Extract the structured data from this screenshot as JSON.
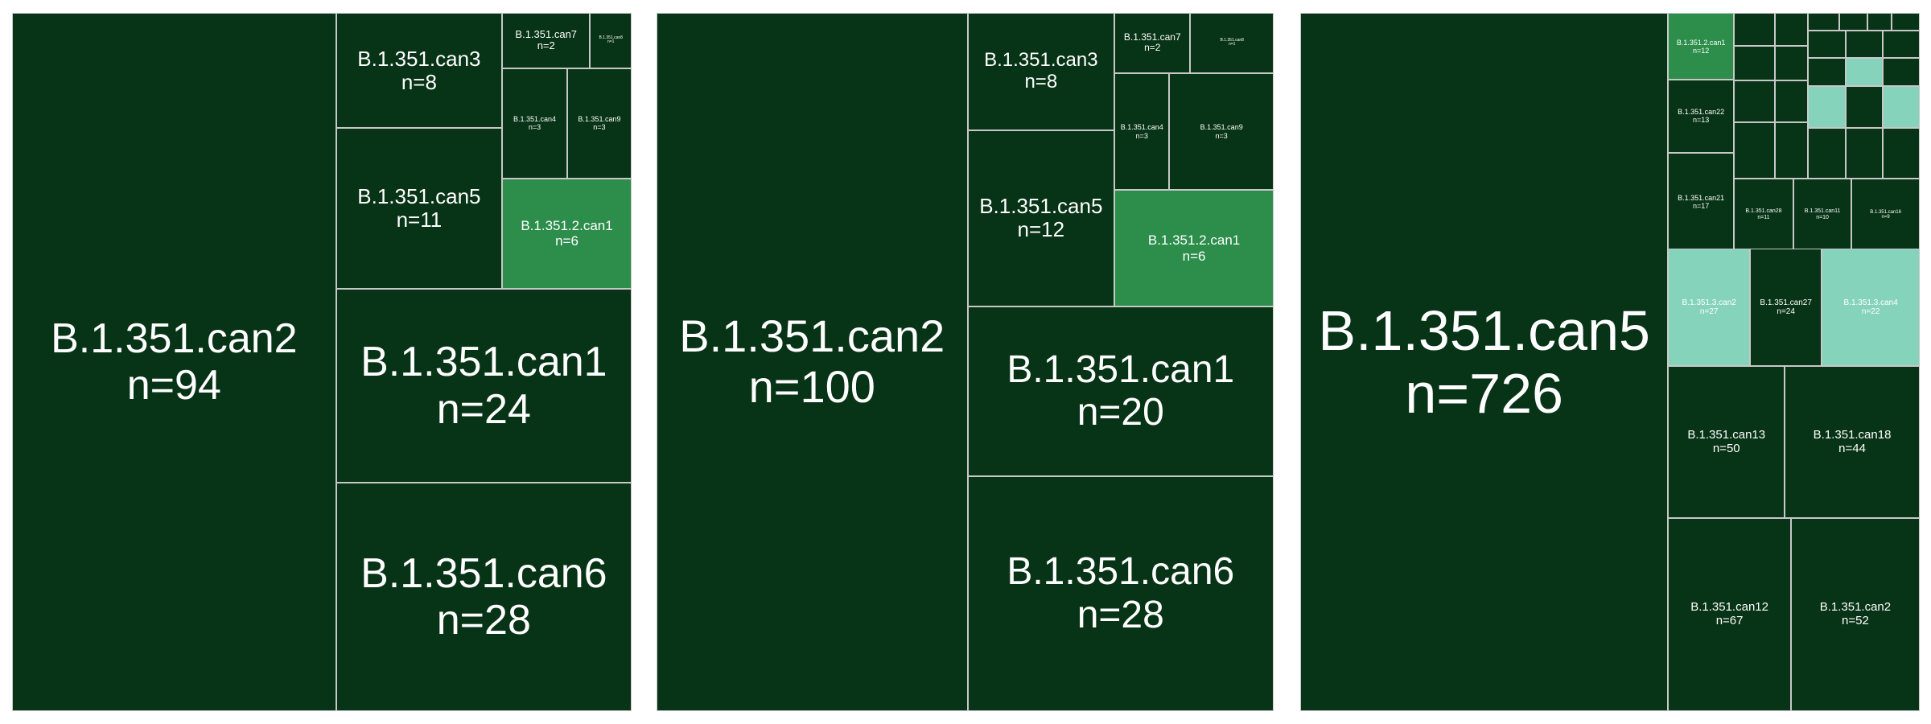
{
  "colors": {
    "dark": "#073316",
    "mid": "#2d8e4b",
    "light": "#86d3bc",
    "border": "#c8c8c8",
    "text": "#ffffff"
  },
  "chart_data": [
    {
      "type": "treemap",
      "title": "",
      "items": [
        {
          "name": "B.1.351.can2",
          "count": 94
        },
        {
          "name": "B.1.351.can3",
          "count": 8
        },
        {
          "name": "B.1.351.can7",
          "count": 2
        },
        {
          "name": "B.1.351.can8",
          "count": 1
        },
        {
          "name": "B.1.351.can4",
          "count": 3
        },
        {
          "name": "B.1.351.can9",
          "count": 3
        },
        {
          "name": "B.1.351.can5",
          "count": 11
        },
        {
          "name": "B.1.351.2.can1",
          "count": 6
        },
        {
          "name": "B.1.351.can1",
          "count": 24
        },
        {
          "name": "B.1.351.can6",
          "count": 28
        }
      ]
    },
    {
      "type": "treemap",
      "title": "",
      "items": [
        {
          "name": "B.1.351.can2",
          "count": 100
        },
        {
          "name": "B.1.351.can3",
          "count": 8
        },
        {
          "name": "B.1.351.can7",
          "count": 2
        },
        {
          "name": "B.1.351.can8",
          "count": 1
        },
        {
          "name": "B.1.351.can4",
          "count": 3
        },
        {
          "name": "B.1.351.can9",
          "count": 3
        },
        {
          "name": "B.1.351.can5",
          "count": 12
        },
        {
          "name": "B.1.351.2.can1",
          "count": 6
        },
        {
          "name": "B.1.351.can1",
          "count": 20
        },
        {
          "name": "B.1.351.can6",
          "count": 28
        }
      ]
    },
    {
      "type": "treemap",
      "title": "",
      "items": [
        {
          "name": "B.1.351.can5",
          "count": 726
        },
        {
          "name": "B.1.351.2.can1",
          "count": 12
        },
        {
          "name": "B.1.351.can22",
          "count": 13
        },
        {
          "name": "B.1.351.can21",
          "count": 17
        },
        {
          "name": "B.1.351.can28",
          "count": 11
        },
        {
          "name": "B.1.351.can11",
          "count": 10
        },
        {
          "name": "B.1.351.can16",
          "count": 9
        },
        {
          "name": "B.1.351.3.can2",
          "count": 27
        },
        {
          "name": "B.1.351.can27",
          "count": 24
        },
        {
          "name": "B.1.351.3.can4",
          "count": 22
        },
        {
          "name": "B.1.351.can13",
          "count": 50
        },
        {
          "name": "B.1.351.can18",
          "count": 44
        },
        {
          "name": "B.1.351.can12",
          "count": 67
        },
        {
          "name": "B.1.351.can2",
          "count": 52
        }
      ]
    }
  ]
}
